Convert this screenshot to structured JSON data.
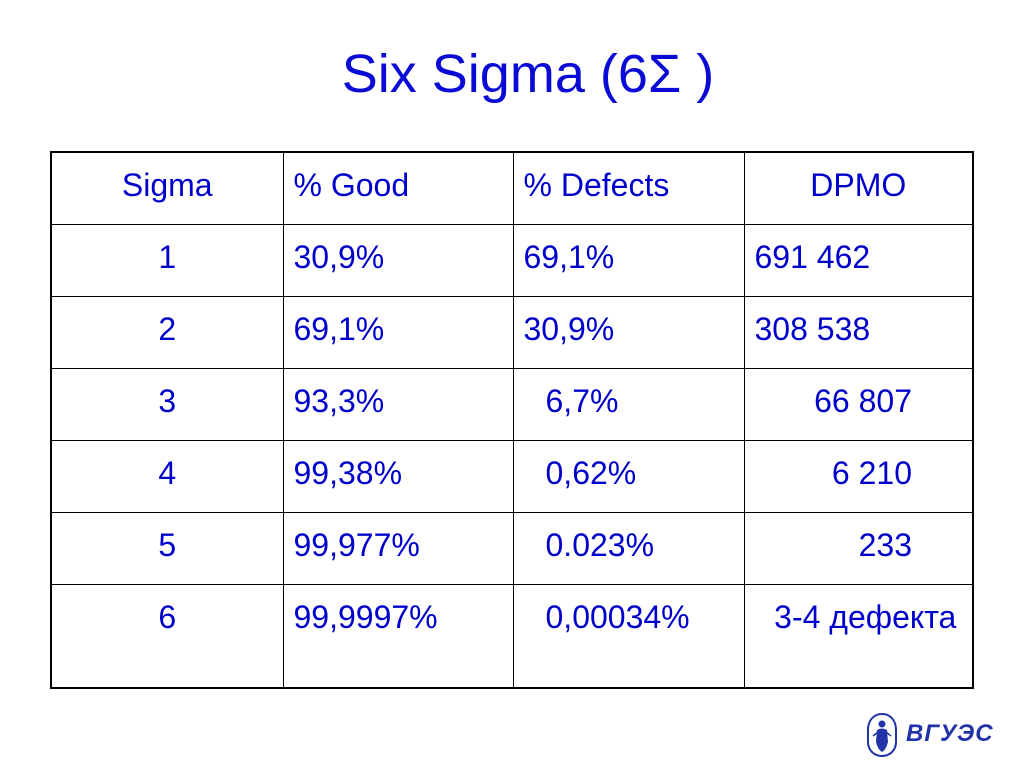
{
  "title": "Six Sigma (6Σ )",
  "table": {
    "headers": [
      "Sigma",
      "% Good",
      "% Defects",
      "DPMO"
    ],
    "rows": [
      [
        "1",
        "30,9%",
        "69,1%",
        "691 462"
      ],
      [
        "2",
        "69,1%",
        "30,9%",
        "308 538"
      ],
      [
        "3",
        "93,3%",
        "6,7%",
        "66 807"
      ],
      [
        "4",
        "99,38%",
        "0,62%",
        "6 210"
      ],
      [
        "5",
        "99,977%",
        "0.023%",
        "233"
      ],
      [
        "6",
        "99,9997%",
        "0,00034%",
        "3-4 дефекта"
      ]
    ]
  },
  "logo": {
    "text": "ВГУЭС",
    "color": "#2233aa",
    "icon": "emblem-icon"
  },
  "colors": {
    "text": "#0000cc",
    "title": "#0a0ad6",
    "border": "#000000"
  }
}
